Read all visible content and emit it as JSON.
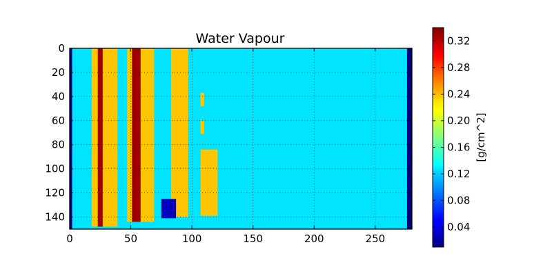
{
  "chart_data": {
    "type": "heatmap",
    "title": "Water Vapour",
    "xlabel": "",
    "ylabel": "",
    "xlim": [
      0,
      280
    ],
    "ylim": [
      150,
      0
    ],
    "x_ticks": [
      0,
      50,
      100,
      150,
      200,
      250
    ],
    "y_ticks": [
      0,
      20,
      40,
      60,
      80,
      100,
      120,
      140
    ],
    "grid": true,
    "colormap": "jet",
    "colorbar": {
      "label": "[g/cm^2]",
      "range": [
        0.01,
        0.34
      ],
      "ticks": [
        0.04,
        0.08,
        0.12,
        0.16,
        0.2,
        0.24,
        0.28,
        0.32
      ],
      "tick_labels": [
        "0.04",
        "0.08",
        "0.12",
        "0.16",
        "0.20",
        "0.24",
        "0.28",
        "0.32"
      ]
    },
    "background_value": 0.125,
    "regions": [
      {
        "name": "left-edge-strip",
        "x": [
          0,
          2
        ],
        "y": [
          0,
          150
        ],
        "value": 0.01
      },
      {
        "name": "right-edge-strip",
        "x": [
          276,
          280
        ],
        "y": [
          0,
          150
        ],
        "value": 0.01
      },
      {
        "name": "band-1",
        "x": [
          18,
          39
        ],
        "y": [
          0,
          148
        ],
        "value": 0.235
      },
      {
        "name": "band-1-core",
        "x": [
          23,
          27
        ],
        "y": [
          0,
          148
        ],
        "value": 0.33
      },
      {
        "name": "band-2",
        "x": [
          47,
          69
        ],
        "y": [
          0,
          144
        ],
        "value": 0.235
      },
      {
        "name": "band-2-core",
        "x": [
          51,
          58
        ],
        "y": [
          0,
          144
        ],
        "value": 0.33
      },
      {
        "name": "band-3",
        "x": [
          83,
          97
        ],
        "y": [
          0,
          140
        ],
        "value": 0.235
      },
      {
        "name": "band-4",
        "x": [
          107,
          121
        ],
        "y": [
          84,
          139
        ],
        "value": 0.235
      },
      {
        "name": "patch-1",
        "x": [
          107,
          110
        ],
        "y": [
          60,
          71
        ],
        "value": 0.235
      },
      {
        "name": "patch-2",
        "x": [
          107,
          110
        ],
        "y": [
          37,
          48
        ],
        "value": 0.235
      },
      {
        "name": "low-patch",
        "x": [
          75,
          87
        ],
        "y": [
          125,
          141
        ],
        "value": 0.03
      }
    ]
  }
}
